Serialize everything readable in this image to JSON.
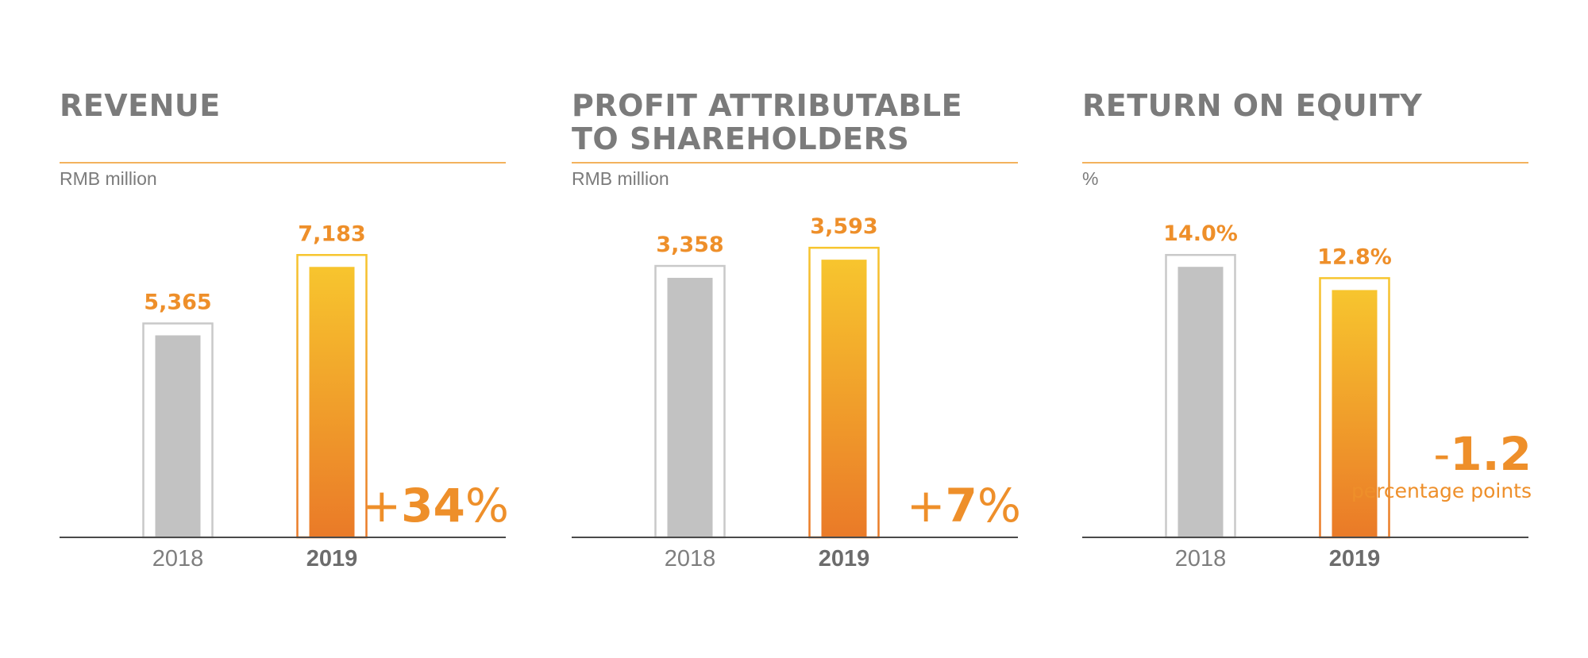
{
  "colors": {
    "text_gray": "#7b7b7b",
    "accent_orange": "#ee8f2a",
    "rule_orange": "#f3b25d",
    "bar_gray": "#c2c2c2",
    "gradient_top": "#f7c52e",
    "gradient_bottom": "#ea7a28"
  },
  "panels": [
    {
      "title": "REVENUE",
      "unit": "RMB million",
      "change": {
        "sign": "+",
        "value": "34",
        "suffix": "%",
        "note": ""
      }
    },
    {
      "title": "PROFIT ATTRIBUTABLE TO SHAREHOLDERS",
      "unit": "RMB million",
      "change": {
        "sign": "+",
        "value": "7",
        "suffix": "%",
        "note": ""
      }
    },
    {
      "title": "RETURN ON EQUITY",
      "unit": "%",
      "change": {
        "sign": "-",
        "value": "1.2",
        "suffix": "",
        "note": "percentage points"
      }
    }
  ],
  "chart_data": [
    {
      "type": "bar",
      "title": "REVENUE",
      "ylabel": "RMB million",
      "categories": [
        "2018",
        "2019"
      ],
      "values": [
        5365,
        7183
      ],
      "data_labels": [
        "5,365",
        "7,183"
      ],
      "highlight_category": "2019",
      "ylim": [
        0,
        7800
      ]
    },
    {
      "type": "bar",
      "title": "PROFIT ATTRIBUTABLE TO SHAREHOLDERS",
      "ylabel": "RMB million",
      "categories": [
        "2018",
        "2019"
      ],
      "values": [
        3358,
        3593
      ],
      "data_labels": [
        "3,358",
        "3,593"
      ],
      "highlight_category": "2019",
      "ylim": [
        0,
        3800
      ]
    },
    {
      "type": "bar",
      "title": "RETURN ON EQUITY",
      "ylabel": "%",
      "categories": [
        "2018",
        "2019"
      ],
      "values": [
        14.0,
        12.8
      ],
      "data_labels": [
        "14.0%",
        "12.8%"
      ],
      "highlight_category": "2019",
      "ylim": [
        0,
        15.2
      ]
    }
  ]
}
